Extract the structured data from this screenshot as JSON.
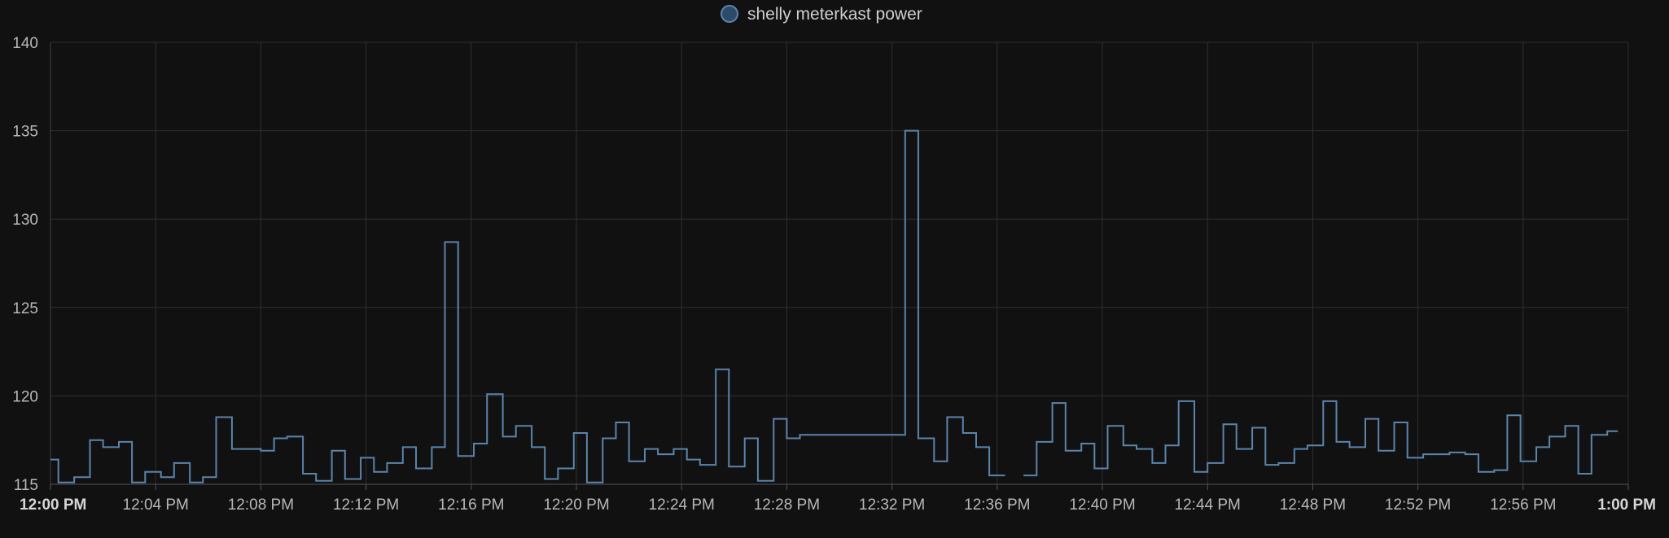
{
  "chart_data": {
    "type": "line",
    "step": true,
    "legend": {
      "position": "top-center",
      "entries": [
        {
          "name": "shelly meterkast power",
          "color": "#5b7fa6"
        }
      ]
    },
    "grid": true,
    "colors": {
      "background": "#111111",
      "grid": "#2f2f2f",
      "line": "#5b84ac",
      "legend_marker_fill": "#2e4a6a",
      "legend_marker_stroke": "#5b84ac"
    },
    "ylim": [
      115,
      140
    ],
    "yticks": [
      115,
      120,
      125,
      130,
      135,
      140
    ],
    "xlim_minutes": [
      0,
      60
    ],
    "xticks": [
      {
        "label": "12:00 PM",
        "bold": true
      },
      {
        "label": "12:04 PM",
        "bold": false
      },
      {
        "label": "12:08 PM",
        "bold": false
      },
      {
        "label": "12:12 PM",
        "bold": false
      },
      {
        "label": "12:16 PM",
        "bold": false
      },
      {
        "label": "12:20 PM",
        "bold": false
      },
      {
        "label": "12:24 PM",
        "bold": false
      },
      {
        "label": "12:28 PM",
        "bold": false
      },
      {
        "label": "12:32 PM",
        "bold": false
      },
      {
        "label": "12:36 PM",
        "bold": false
      },
      {
        "label": "12:40 PM",
        "bold": false
      },
      {
        "label": "12:44 PM",
        "bold": false
      },
      {
        "label": "12:48 PM",
        "bold": false
      },
      {
        "label": "12:52 PM",
        "bold": false
      },
      {
        "label": "12:56 PM",
        "bold": false
      },
      {
        "label": "1:00 PM",
        "bold": true
      }
    ],
    "series": [
      {
        "name": "shelly meterkast power",
        "segments": [
          [
            [
              0.0,
              116.4
            ],
            [
              0.3,
              115.1
            ],
            [
              0.9,
              115.4
            ],
            [
              1.5,
              117.5
            ],
            [
              2.0,
              117.1
            ],
            [
              2.6,
              117.4
            ],
            [
              3.1,
              115.1
            ],
            [
              3.6,
              115.7
            ],
            [
              4.2,
              115.4
            ],
            [
              4.7,
              116.2
            ],
            [
              5.3,
              115.1
            ],
            [
              5.8,
              115.4
            ],
            [
              6.3,
              118.8
            ],
            [
              6.9,
              117.0
            ],
            [
              7.4,
              117.0
            ],
            [
              8.0,
              116.9
            ],
            [
              8.5,
              117.6
            ],
            [
              9.0,
              117.7
            ],
            [
              9.6,
              115.6
            ],
            [
              10.1,
              115.2
            ],
            [
              10.7,
              116.9
            ],
            [
              11.2,
              115.3
            ],
            [
              11.8,
              116.5
            ],
            [
              12.3,
              115.7
            ],
            [
              12.8,
              116.2
            ],
            [
              13.4,
              117.1
            ],
            [
              13.9,
              115.9
            ],
            [
              14.5,
              117.1
            ],
            [
              15.0,
              128.7
            ],
            [
              15.5,
              116.6
            ],
            [
              16.1,
              117.3
            ],
            [
              16.6,
              120.1
            ],
            [
              17.2,
              117.7
            ],
            [
              17.7,
              118.3
            ],
            [
              18.3,
              117.1
            ],
            [
              18.8,
              115.3
            ],
            [
              19.3,
              115.9
            ],
            [
              19.9,
              117.9
            ],
            [
              20.4,
              115.1
            ],
            [
              21.0,
              117.6
            ],
            [
              21.5,
              118.5
            ],
            [
              22.0,
              116.3
            ],
            [
              22.6,
              117.0
            ],
            [
              23.1,
              116.7
            ],
            [
              23.7,
              117.0
            ],
            [
              24.2,
              116.4
            ],
            [
              24.7,
              116.1
            ],
            [
              25.3,
              121.5
            ],
            [
              25.8,
              116.0
            ],
            [
              26.4,
              117.6
            ],
            [
              26.9,
              115.2
            ],
            [
              27.5,
              118.7
            ],
            [
              28.0,
              117.6
            ],
            [
              28.5,
              117.8
            ],
            [
              32.5,
              135.0
            ],
            [
              33.0,
              117.6
            ],
            [
              33.6,
              116.3
            ],
            [
              34.1,
              118.8
            ],
            [
              34.7,
              117.9
            ],
            [
              35.2,
              117.1
            ],
            [
              35.7,
              115.5
            ],
            [
              36.3,
              115.5
            ]
          ],
          [
            [
              37.0,
              115.5
            ],
            [
              37.5,
              117.4
            ],
            [
              38.1,
              119.6
            ],
            [
              38.6,
              116.9
            ],
            [
              39.2,
              117.3
            ],
            [
              39.7,
              115.9
            ],
            [
              40.2,
              118.3
            ],
            [
              40.8,
              117.2
            ],
            [
              41.3,
              117.0
            ],
            [
              41.9,
              116.2
            ],
            [
              42.4,
              117.2
            ],
            [
              42.9,
              119.7
            ],
            [
              43.5,
              115.7
            ],
            [
              44.0,
              116.2
            ],
            [
              44.6,
              118.4
            ],
            [
              45.1,
              117.0
            ],
            [
              45.7,
              118.2
            ],
            [
              46.2,
              116.1
            ],
            [
              46.7,
              116.2
            ],
            [
              47.3,
              117.0
            ],
            [
              47.8,
              117.2
            ],
            [
              48.4,
              119.7
            ],
            [
              48.9,
              117.4
            ],
            [
              49.4,
              117.1
            ],
            [
              50.0,
              118.7
            ],
            [
              50.5,
              116.9
            ],
            [
              51.1,
              118.5
            ],
            [
              51.6,
              116.5
            ],
            [
              52.2,
              116.7
            ],
            [
              53.2,
              116.8
            ],
            [
              53.8,
              116.7
            ],
            [
              54.3,
              115.7
            ],
            [
              54.9,
              115.8
            ],
            [
              55.4,
              118.9
            ],
            [
              55.9,
              116.3
            ],
            [
              56.5,
              117.1
            ],
            [
              57.0,
              117.7
            ],
            [
              57.6,
              118.3
            ],
            [
              58.1,
              115.6
            ],
            [
              58.6,
              117.8
            ],
            [
              59.2,
              118.0
            ],
            [
              59.6,
              118.0
            ]
          ]
        ]
      }
    ]
  }
}
